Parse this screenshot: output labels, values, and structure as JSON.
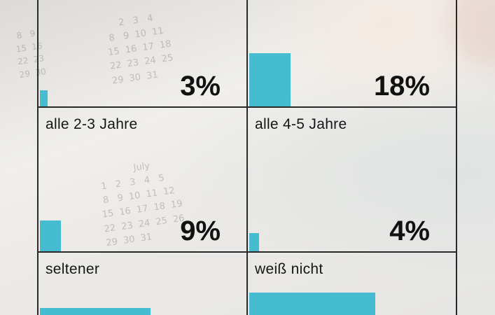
{
  "chart_data": {
    "type": "bar",
    "categories": [
      "",
      "",
      "alle 2-3 Jahre",
      "alle 4-5 Jahre",
      "seltener",
      "weiß nicht"
    ],
    "values": [
      3,
      18,
      9,
      4,
      null,
      null
    ],
    "value_labels": [
      "3%",
      "18%",
      "9%",
      "4%",
      "",
      ""
    ],
    "colors": {
      "bar": "#45bcd0",
      "grid": "#2a2a2a"
    }
  }
}
